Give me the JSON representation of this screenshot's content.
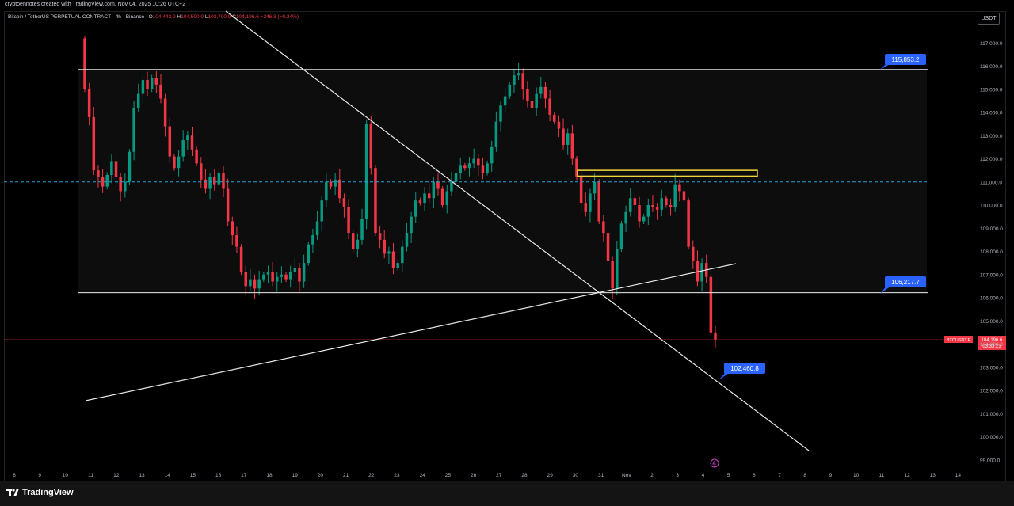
{
  "header": {
    "credit": "cryptoennotes created with TradingView.com, Nov 04, 2025 10:26 UTC+2",
    "symbol": "Bitcoin / TetherUS PERPETUAL CONTRACT · 4h · Binance",
    "o_label": "O",
    "o_value": "104,442.9",
    "h_label": "H",
    "h_value": "104,500.0",
    "l_label": "L",
    "l_value": "103,700.0",
    "c_label": "C",
    "c_value": "104,196.6",
    "change": "−246.3 (−0.24%)"
  },
  "currency": "USDT",
  "brand": "TradingView",
  "chart_data": {
    "type": "candlestick",
    "timeframe": "4h",
    "ylim": [
      98700,
      117700
    ],
    "x_tick_labels": [
      "8",
      "9",
      "10",
      "11",
      "12",
      "13",
      "14",
      "15",
      "16",
      "17",
      "18",
      "19",
      "20",
      "21",
      "22",
      "23",
      "24",
      "25",
      "26",
      "27",
      "28",
      "29",
      "30",
      "31",
      "Nov",
      "2",
      "3",
      "4",
      "5",
      "6",
      "7",
      "8",
      "9",
      "10",
      "11",
      "12",
      "13",
      "14"
    ],
    "y_tick_labels": [
      "99,000.0",
      "100,000.0",
      "101,000.0",
      "102,000.0",
      "103,000.0",
      "104,000.0",
      "105,000.0",
      "106,000.0",
      "107,000.0",
      "108,000.0",
      "109,000.0",
      "110,000.0",
      "111,000.0",
      "112,000.0",
      "113,000.0",
      "114,000.0",
      "115,000.0",
      "116,000.0",
      "117,000.0"
    ],
    "y_ticks": [
      99000,
      100000,
      101000,
      102000,
      103000,
      104000,
      105000,
      106000,
      107000,
      108000,
      109000,
      110000,
      111000,
      112000,
      113000,
      114000,
      115000,
      116000,
      117000
    ],
    "closes": [
      115000,
      113800,
      111500,
      111200,
      110800,
      111300,
      111900,
      111200,
      110600,
      111000,
      112300,
      114200,
      114800,
      115400,
      115000,
      115500,
      115200,
      114600,
      113400,
      112100,
      111600,
      112100,
      112800,
      113000,
      112400,
      111800,
      111100,
      110700,
      111200,
      110900,
      111400,
      110700,
      109300,
      108700,
      108200,
      107100,
      106500,
      106800,
      106400,
      106800,
      107000,
      107100,
      106700,
      106900,
      107000,
      106800,
      107100,
      107300,
      106700,
      107500,
      108300,
      108700,
      109300,
      110200,
      111000,
      110800,
      111100,
      110300,
      109900,
      108800,
      108100,
      108500,
      109400,
      113500,
      111600,
      108800,
      108500,
      107900,
      108000,
      107300,
      107500,
      108200,
      108800,
      109500,
      110200,
      110100,
      110500,
      110300,
      111000,
      110700,
      110000,
      110600,
      111000,
      111400,
      111700,
      111600,
      111800,
      112000,
      111700,
      111400,
      111800,
      112500,
      113600,
      114300,
      114700,
      115200,
      115600,
      115700,
      115000,
      114500,
      114200,
      114800,
      115100,
      114600,
      113900,
      113600,
      113300,
      112600,
      113100,
      112000,
      111200,
      110100,
      109700,
      110500,
      111000,
      109300,
      108800,
      107600,
      106400,
      108100,
      109200,
      109700,
      110300,
      110000,
      109300,
      109500,
      110000,
      109900,
      109800,
      110300,
      110000,
      109900,
      110900,
      110600,
      110200,
      108200,
      107600,
      106700,
      107500,
      106900,
      104500,
      104200
    ],
    "levels": [
      {
        "label": "115,853.2",
        "value": 115853.2
      },
      {
        "label": "106,217.7",
        "value": 106217.7
      },
      {
        "label": "102,460.8",
        "value": 102460.8
      }
    ],
    "dashed_level": 111000,
    "highlight_zone": [
      111250,
      111500
    ],
    "last_price": {
      "symbol": "BTCUSDT.P",
      "value": "104,196.6",
      "countdown": "03:33:23"
    },
    "colors": {
      "up": "#089981",
      "down": "#f23645",
      "line": "#e8e8e8",
      "dashed": "#2a9fd6",
      "label_bg": "#2962ff",
      "zone": "#f0d53a"
    }
  }
}
